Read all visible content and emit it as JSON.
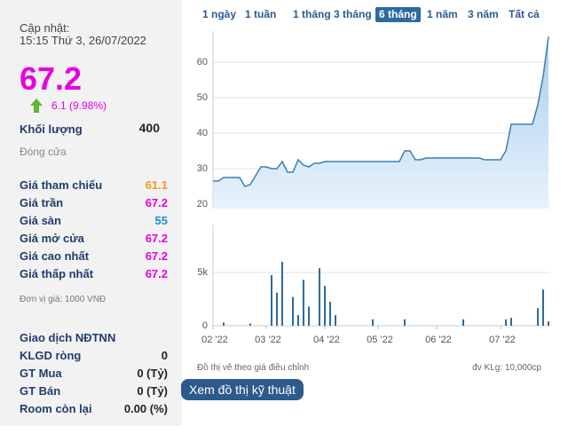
{
  "header": {
    "updated_label": "Cập nhật:",
    "updated_time": "15:15 Thứ 3, 26/07/2022"
  },
  "price": "67.2",
  "change": "6.1 (9.98%)",
  "volume": {
    "label": "Khối lượng",
    "value": "400"
  },
  "status": "Đóng cửa",
  "stats": [
    {
      "label": "Giá tham chiếu",
      "value": "61.1",
      "color": "#f7941d"
    },
    {
      "label": "Giá trần",
      "value": "67.2",
      "color": "#e600e6"
    },
    {
      "label": "Giá sàn",
      "value": "55",
      "color": "#1b8fc9"
    },
    {
      "label": "Giá mở cửa",
      "value": "67.2",
      "color": "#e600e6"
    },
    {
      "label": "Giá cao nhất",
      "value": "67.2",
      "color": "#e600e6"
    },
    {
      "label": "Giá thấp nhất",
      "value": "67.2",
      "color": "#e600e6"
    }
  ],
  "unit_note": "Đơn vị giá: 1000 VNĐ",
  "foreign": {
    "title": "Giao dịch NĐTNN",
    "rows": [
      {
        "label": "KLGD ròng",
        "value": "0"
      },
      {
        "label": "GT Mua",
        "value": "0 (Tỷ)"
      },
      {
        "label": "GT Bán",
        "value": "0 (Tỷ)"
      },
      {
        "label": "Room còn lại",
        "value": "0.00 (%)"
      }
    ]
  },
  "tabs": [
    "1 ngày",
    "1 tuần",
    "1 tháng",
    "3 tháng",
    "6 tháng",
    "1 năm",
    "3 năm",
    "Tất cả"
  ],
  "active_tab": 4,
  "notes": {
    "adjusted": "Đồ thị vẽ theo giá điều chỉnh",
    "volume_unit": "đv KLg: 10,000cp"
  },
  "button": "Xem đồ thị kỹ thuật",
  "chart_data": [
    {
      "type": "area",
      "color": "#3d7fae",
      "categories": [
        "02 '22",
        null,
        null,
        null,
        null,
        null,
        null,
        null,
        null,
        null,
        "03 '22",
        null,
        null,
        null,
        null,
        null,
        null,
        null,
        null,
        null,
        null,
        "04 '22",
        null,
        null,
        null,
        null,
        null,
        null,
        null,
        null,
        null,
        "05 '22",
        null,
        null,
        null,
        null,
        null,
        null,
        null,
        null,
        null,
        null,
        "06 '22",
        null,
        null,
        null,
        null,
        null,
        null,
        null,
        null,
        null,
        null,
        null,
        "07 '22",
        null,
        null,
        null,
        null,
        null,
        null,
        null,
        null,
        null
      ],
      "values": [
        26.5,
        26.5,
        27.5,
        27.5,
        27.5,
        27.5,
        25,
        25.5,
        28,
        30.5,
        30.5,
        30,
        30,
        32,
        29,
        29,
        32.5,
        31,
        30.5,
        31.5,
        31.5,
        32,
        32,
        32,
        32,
        32,
        32,
        32,
        32,
        32,
        32,
        32,
        32,
        32,
        32,
        32,
        35,
        35,
        32.5,
        32.5,
        33,
        33,
        33,
        33,
        33,
        33,
        33,
        33,
        33,
        33,
        33,
        32.5,
        32.5,
        32.5,
        32.5,
        35,
        42.5,
        42.5,
        42.5,
        42.5,
        42.5,
        48,
        56,
        67.2
      ],
      "ylim": [
        18.75,
        68.75
      ],
      "yticks": [
        20,
        30,
        40,
        50,
        60
      ],
      "grid": true
    },
    {
      "type": "bar",
      "color": "#2d6b9c",
      "categories": [
        "02 '22",
        null,
        null,
        null,
        null,
        null,
        null,
        null,
        null,
        null,
        "03 '22",
        null,
        null,
        null,
        null,
        null,
        null,
        null,
        null,
        null,
        null,
        "04 '22",
        null,
        null,
        null,
        null,
        null,
        null,
        null,
        null,
        null,
        "05 '22",
        null,
        null,
        null,
        null,
        null,
        null,
        null,
        null,
        null,
        null,
        "06 '22",
        null,
        null,
        null,
        null,
        null,
        null,
        null,
        null,
        null,
        null,
        null,
        "07 '22",
        null,
        null,
        null,
        null,
        null,
        null,
        null,
        null,
        null
      ],
      "values": [
        0,
        0,
        300,
        0,
        0,
        0,
        0,
        200,
        0,
        0,
        0,
        4750,
        3100,
        6000,
        0,
        2700,
        1000,
        4300,
        1800,
        0,
        5400,
        3750,
        2250,
        1000,
        0,
        0,
        0,
        0,
        0,
        0,
        600,
        0,
        0,
        0,
        0,
        0,
        600,
        0,
        0,
        0,
        0,
        0,
        0,
        0,
        0,
        0,
        0,
        600,
        0,
        0,
        0,
        0,
        0,
        0,
        0,
        600,
        750,
        0,
        0,
        0,
        0,
        1650,
        3400,
        400
      ],
      "ylim": [
        0,
        9500
      ],
      "yticks": [
        0,
        {
          "value": 5000,
          "label": "5k"
        }
      ],
      "grid": true
    }
  ]
}
